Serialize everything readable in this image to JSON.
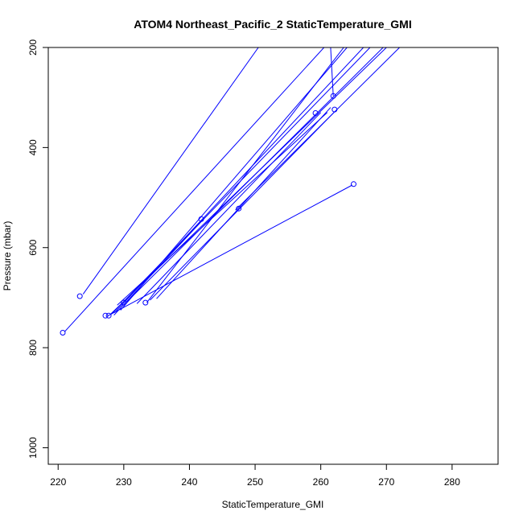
{
  "chart_data": {
    "type": "scatter",
    "title": "ATOM4 Northeast_Pacific_2 StaticTemperature_GMI",
    "xlabel": "StaticTemperature_GMI",
    "ylabel": "Pressure (mbar)",
    "xlim": [
      218.5,
      287
    ],
    "ylim": [
      1033,
      200
    ],
    "y_reversed": true,
    "xticks": [
      220,
      230,
      240,
      250,
      260,
      270,
      280
    ],
    "yticks": [
      200,
      400,
      600,
      800,
      1000
    ],
    "grid": false,
    "legend": "none",
    "series": [
      {
        "color": "#0000ff",
        "points": [
          [
            233.3,
            710
          ],
          [
            265.0,
            473
          ],
          [
            241.8,
            543
          ],
          [
            227.2,
            736
          ],
          [
            247.5,
            522
          ],
          [
            227.7,
            736
          ],
          [
            262.1,
            324
          ],
          [
            230.0,
            710
          ],
          [
            259.2,
            331
          ],
          [
            261.9,
            297
          ],
          [
            220.7,
            770
          ],
          [
            223.3,
            697
          ]
        ],
        "segments": [
          [
            [
              234.0,
              705
            ],
            [
              262.0,
              330
            ]
          ],
          [
            [
              229.0,
              715
            ],
            [
              261.0,
              330
            ]
          ],
          [
            [
              230.5,
              708
            ],
            [
              269.5,
              200
            ]
          ],
          [
            [
              228.0,
              733
            ],
            [
              270.0,
              200
            ]
          ],
          [
            [
              228.6,
              730
            ],
            [
              266.5,
              200
            ]
          ],
          [
            [
              228.2,
              732
            ],
            [
              267.5,
              200
            ]
          ],
          [
            [
              229.5,
              725
            ],
            [
              264.0,
              200
            ]
          ],
          [
            [
              221.0,
              768
            ],
            [
              260.5,
              200
            ]
          ],
          [
            [
              223.8,
              693
            ],
            [
              250.5,
              200
            ]
          ],
          [
            [
              261.5,
              200
            ],
            [
              261.9,
              297
            ]
          ],
          [
            [
              228.5,
              735
            ],
            [
              242.0,
              545
            ]
          ],
          [
            [
              227.5,
              737
            ],
            [
              264.8,
              475
            ]
          ],
          [
            [
              233.5,
              710
            ],
            [
              263.5,
              200
            ]
          ],
          [
            [
              247.0,
              525
            ],
            [
              272.0,
              200
            ]
          ],
          [
            [
              232.0,
              712
            ],
            [
              260.0,
              330
            ]
          ],
          [
            [
              235.0,
              702
            ],
            [
              261.5,
              320
            ]
          ]
        ]
      }
    ]
  }
}
